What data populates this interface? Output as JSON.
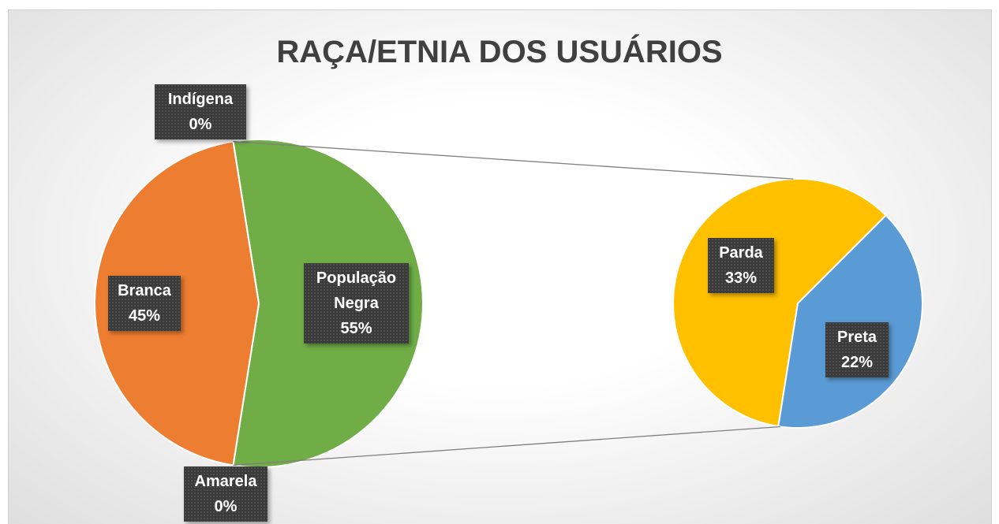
{
  "chart_data": {
    "type": "pie-of-pie",
    "title": "RAÇA/ETNIA DOS USUÁRIOS",
    "categories": [
      "População Negra",
      "Amarela",
      "Branca",
      "Indígena"
    ],
    "values": [
      55,
      0,
      45,
      0
    ],
    "value_labels": [
      "55%",
      "0%",
      "45%",
      "0%"
    ],
    "colors": [
      "#70ad47",
      "#a5a5a5",
      "#ed7d31",
      "#4472c4"
    ],
    "secondary": {
      "categories": [
        "Parda",
        "Preta"
      ],
      "values": [
        33,
        22
      ],
      "value_labels": [
        "33%",
        "22%"
      ],
      "colors": [
        "#ffc000",
        "#5b9bd5"
      ]
    }
  }
}
